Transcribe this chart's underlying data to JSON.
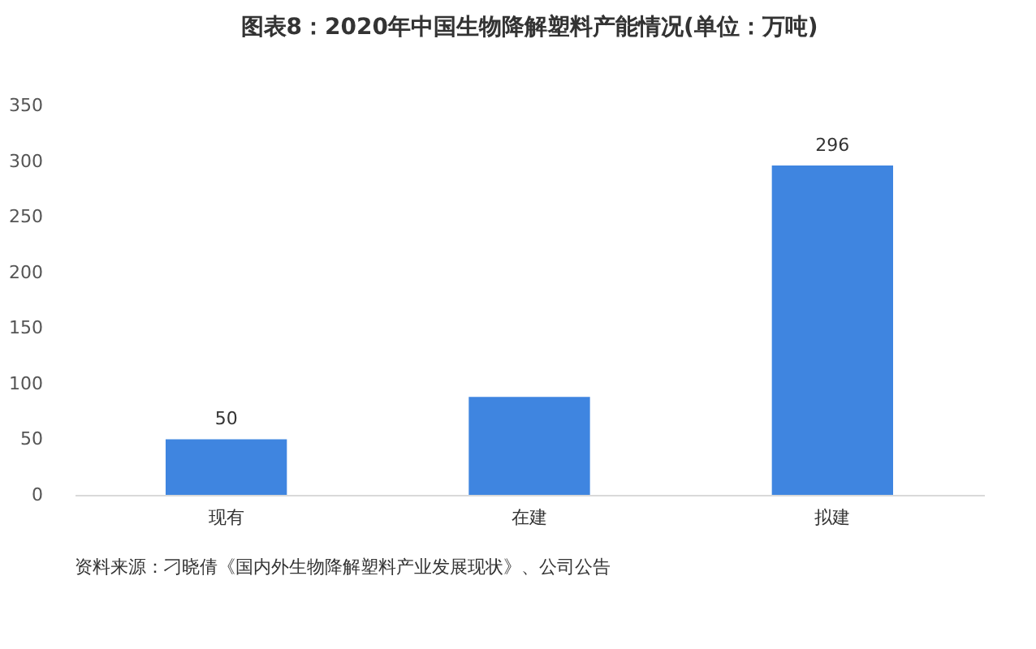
{
  "chart_data": {
    "type": "bar",
    "title": "图表8：2020年中国生物降解塑料产能情况(单位：万吨)",
    "categories": [
      "现有",
      "在建",
      "拟建"
    ],
    "values": [
      50,
      88,
      296
    ],
    "value_labels": [
      "50",
      null,
      "296"
    ],
    "color": "#3f85e0",
    "ylim": [
      0,
      350
    ],
    "yticks": [
      0,
      50,
      100,
      150,
      200,
      250,
      300,
      350
    ],
    "grid": false,
    "annotations": [
      "资料来源：刁晓倩《国内外生物降解塑料产业发展现状》、公司公告"
    ]
  }
}
